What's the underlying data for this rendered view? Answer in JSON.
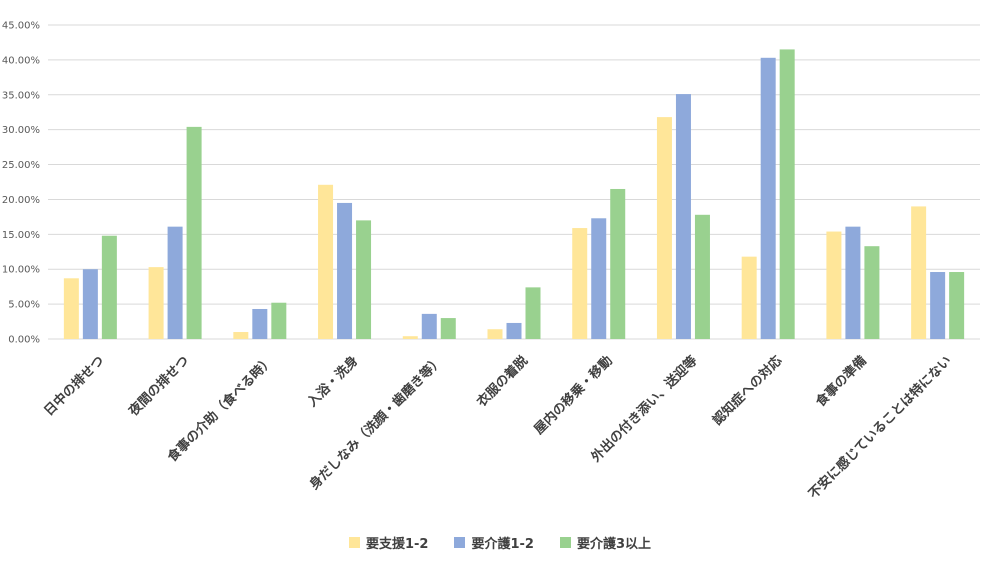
{
  "chart_data": {
    "type": "bar",
    "categories": [
      "日中の排せつ",
      "夜間の排せつ",
      "食事の介助（食べる時）",
      "入浴・洗身",
      "身だしなみ（洗顔・歯磨き等）",
      "衣服の着脱",
      "屋内の移乗・移動",
      "外出の付き添い、送迎等",
      "認知症への対応",
      "食事の準備",
      "不安に感じていることは特にない"
    ],
    "series": [
      {
        "name": "要支援1-2",
        "color": "#FFE699",
        "values": [
          8.7,
          10.3,
          1.0,
          22.1,
          0.4,
          1.4,
          15.9,
          31.8,
          11.8,
          15.4,
          19.0
        ]
      },
      {
        "name": "要介護1-2",
        "color": "#8EA9DB",
        "values": [
          10.0,
          16.1,
          4.3,
          19.5,
          3.6,
          2.3,
          17.3,
          35.1,
          40.3,
          16.1,
          9.6
        ]
      },
      {
        "name": "要介護3以上",
        "color": "#99D18F",
        "values": [
          14.8,
          30.4,
          5.2,
          17.0,
          3.0,
          7.4,
          21.5,
          17.8,
          41.5,
          13.3,
          9.6
        ]
      }
    ],
    "yticks": [
      "0.00%",
      "5.00%",
      "10.00%",
      "15.00%",
      "20.00%",
      "25.00%",
      "30.00%",
      "35.00%",
      "40.00%",
      "45.00%"
    ],
    "ylim": [
      0,
      45
    ],
    "grid": true,
    "legend_position": "bottom",
    "gridline_color": "#D9D9D9"
  }
}
